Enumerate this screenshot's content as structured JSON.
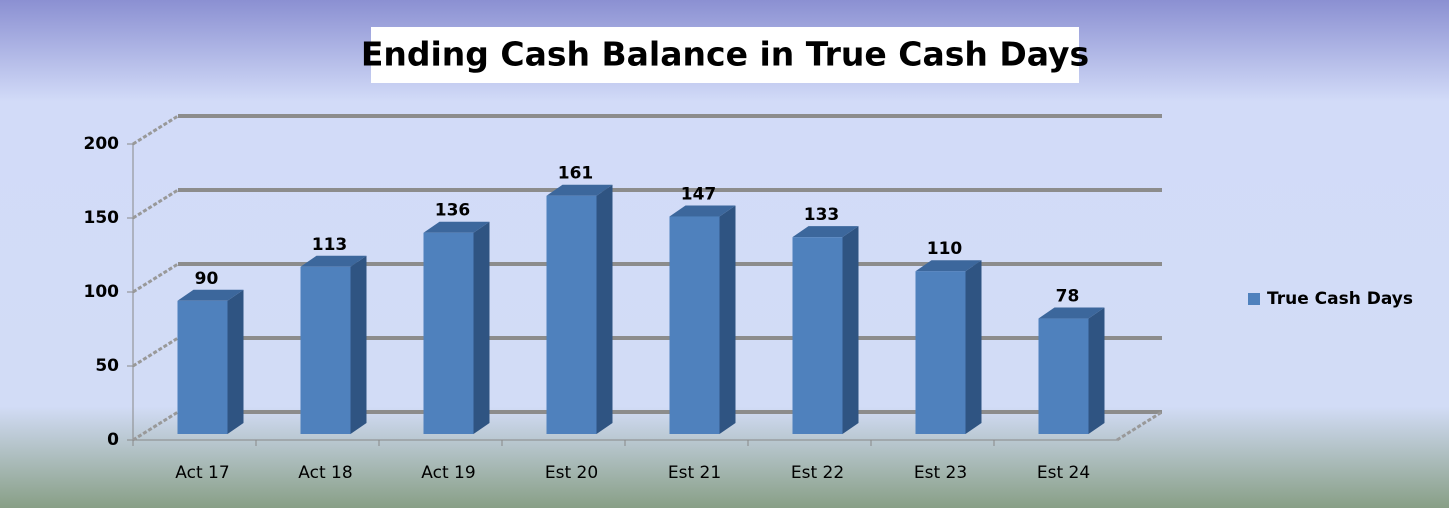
{
  "chart_data": {
    "type": "bar",
    "title": "Ending Cash Balance in True Cash Days",
    "categories": [
      "Act 17",
      "Act 18",
      "Act 19",
      "Est 20",
      "Est 21",
      "Est 22",
      "Est 23",
      "Est 24"
    ],
    "series": [
      {
        "name": "True Cash Days",
        "color": "#4f81bd",
        "values": [
          90,
          113,
          136,
          161,
          147,
          133,
          110,
          78
        ]
      }
    ],
    "ylim": [
      0,
      200
    ],
    "yticks": [
      0,
      50,
      100,
      150,
      200
    ],
    "grid": true,
    "legend": "right",
    "data_labels": true
  }
}
